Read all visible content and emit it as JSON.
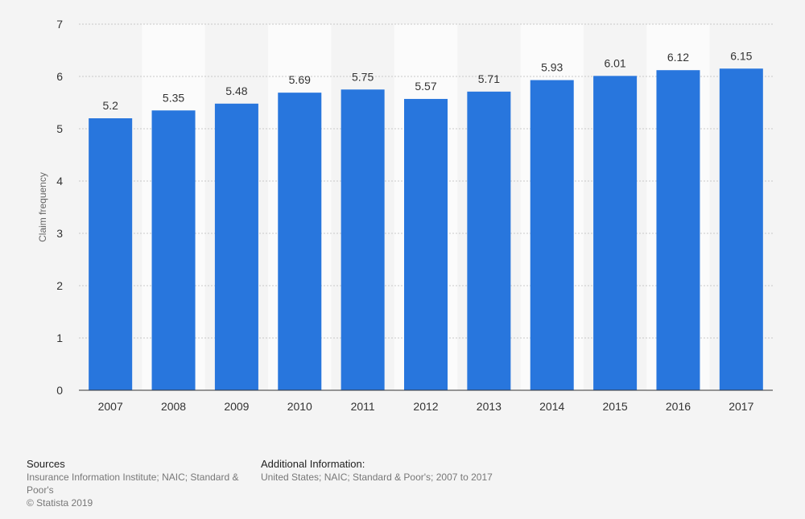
{
  "chart_data": {
    "type": "bar",
    "categories": [
      "2007",
      "2008",
      "2009",
      "2010",
      "2011",
      "2012",
      "2013",
      "2014",
      "2015",
      "2016",
      "2017"
    ],
    "values": [
      5.2,
      5.35,
      5.48,
      5.69,
      5.75,
      5.57,
      5.71,
      5.93,
      6.01,
      6.12,
      6.15
    ],
    "value_labels": [
      "5.2",
      "5.35",
      "5.48",
      "5.69",
      "5.75",
      "5.57",
      "5.71",
      "5.93",
      "6.01",
      "6.12",
      "6.15"
    ],
    "ylabel": "Claim frequency",
    "xlabel": "",
    "ylim": [
      0,
      7
    ],
    "yticks": [
      0,
      1,
      2,
      3,
      4,
      5,
      6,
      7
    ],
    "grid": true,
    "bar_color": "#2876dd",
    "alt_band_color": "#fbfbfb"
  },
  "footer": {
    "sources_heading": "Sources",
    "sources_text": "Insurance Information Institute; NAIC; Standard & Poor's",
    "copyright": "© Statista 2019",
    "additional_heading": "Additional Information:",
    "additional_text": "United States; NAIC; Standard & Poor's; 2007 to 2017"
  }
}
